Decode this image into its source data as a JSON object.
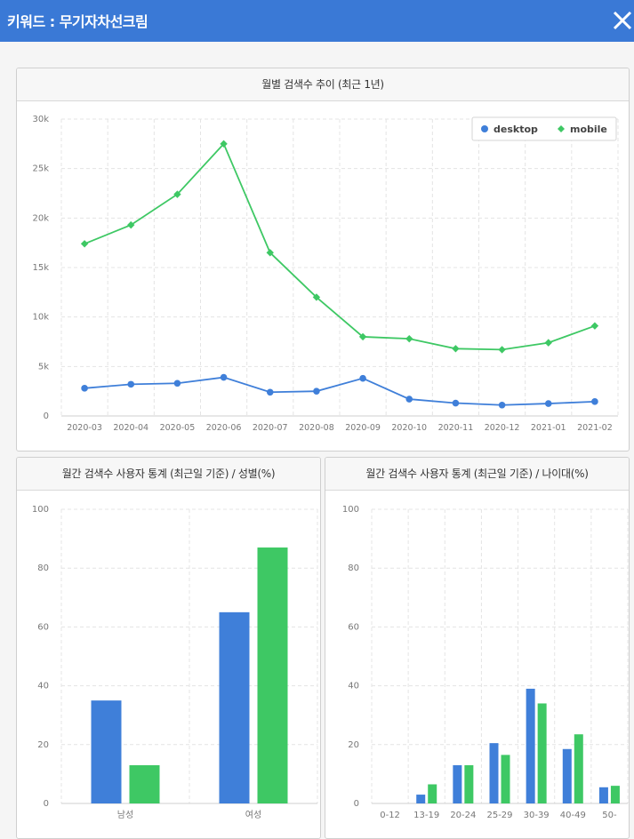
{
  "header": {
    "title": "키워드 : 무기자차선크림"
  },
  "colors": {
    "desktop": "#3f7fd9",
    "mobile": "#3ec864",
    "header": "#3a79d6"
  },
  "icons": {
    "close": "close-icon"
  },
  "chart_data": [
    {
      "type": "line",
      "title": "월별 검색수 추이 (최근 1년)",
      "categories": [
        "2020-03",
        "2020-04",
        "2020-05",
        "2020-06",
        "2020-07",
        "2020-08",
        "2020-09",
        "2020-10",
        "2020-11",
        "2020-12",
        "2021-01",
        "2021-02"
      ],
      "series": [
        {
          "name": "desktop",
          "values": [
            2800,
            3200,
            3300,
            3900,
            2400,
            2500,
            3800,
            1700,
            1300,
            1100,
            1250,
            1450
          ]
        },
        {
          "name": "mobile",
          "values": [
            17400,
            19300,
            22400,
            27500,
            16500,
            12000,
            8000,
            7800,
            6800,
            6700,
            7400,
            9100
          ]
        }
      ],
      "ylim": [
        0,
        30000
      ],
      "yticks": [
        0,
        5000,
        10000,
        15000,
        20000,
        25000,
        30000
      ],
      "ytick_labels": [
        "0",
        "5k",
        "10k",
        "15k",
        "20k",
        "25k",
        "30k"
      ],
      "grid": true,
      "legend": "top-right"
    },
    {
      "type": "bar",
      "title": "월간 검색수 사용자 통계 (최근일 기준) / 성별(%)",
      "categories": [
        "남성",
        "여성"
      ],
      "series": [
        {
          "name": "desktop",
          "values": [
            35,
            65
          ]
        },
        {
          "name": "mobile",
          "values": [
            13,
            87
          ]
        }
      ],
      "ylim": [
        0,
        100
      ],
      "yticks": [
        0,
        20,
        40,
        60,
        80,
        100
      ],
      "grid": true
    },
    {
      "type": "bar",
      "title": "월간 검색수 사용자 통계 (최근일 기준) / 나이대(%)",
      "categories": [
        "0-12",
        "13-19",
        "20-24",
        "25-29",
        "30-39",
        "40-49",
        "50-"
      ],
      "series": [
        {
          "name": "desktop",
          "values": [
            0,
            3,
            13,
            20.5,
            39,
            18.5,
            5.5
          ]
        },
        {
          "name": "mobile",
          "values": [
            0,
            6.5,
            13,
            16.5,
            34,
            23.5,
            6
          ]
        }
      ],
      "ylim": [
        0,
        100
      ],
      "yticks": [
        0,
        20,
        40,
        60,
        80,
        100
      ],
      "grid": true
    }
  ]
}
